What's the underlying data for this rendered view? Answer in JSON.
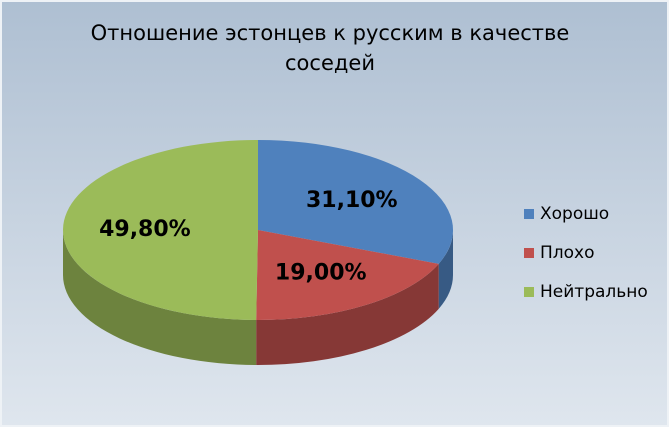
{
  "chart_data": {
    "type": "pie3d",
    "title": "Отношение эстонцев к русским в качестве соседей",
    "categories": [
      "Хорошо",
      "Плохо",
      "Нейтрально"
    ],
    "values": [
      31.1,
      19.0,
      49.8
    ],
    "value_labels": [
      "31,10%",
      "19,00%",
      "49,80%"
    ],
    "colors": [
      "#4f81bd",
      "#c0504d",
      "#9bbb59"
    ],
    "legend": "right"
  }
}
